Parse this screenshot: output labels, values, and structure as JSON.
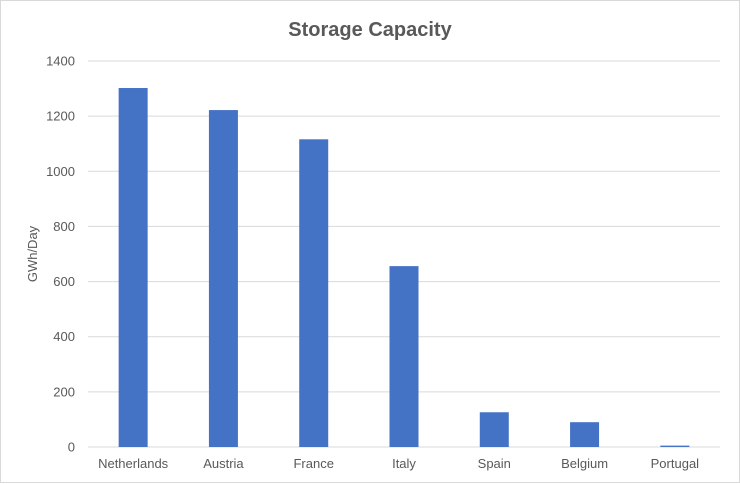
{
  "chart_data": {
    "type": "bar",
    "title": "Storage Capacity",
    "xlabel": "",
    "ylabel": "GWh/Day",
    "categories": [
      "Netherlands",
      "Austria",
      "France",
      "Italy",
      "Spain",
      "Belgium",
      "Portugal"
    ],
    "values": [
      1302,
      1222,
      1116,
      656,
      126,
      90,
      5
    ],
    "ylim": [
      0,
      1400
    ],
    "yticks": [
      0,
      200,
      400,
      600,
      800,
      1000,
      1200,
      1400
    ],
    "grid": true,
    "legend": "none",
    "bar_color": "#4472c4",
    "grid_color": "#d9d9d9"
  }
}
